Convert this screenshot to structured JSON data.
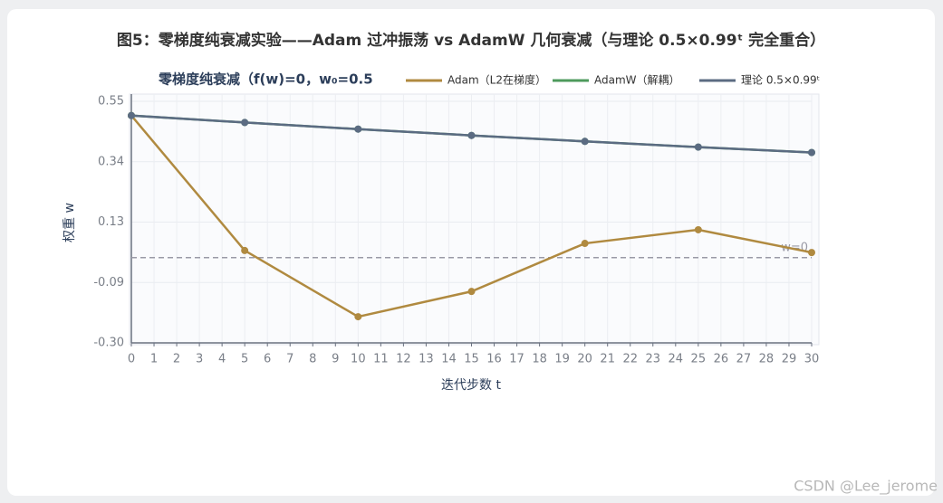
{
  "chart_data": {
    "type": "line",
    "title": "图5：零梯度纯衰减实验——Adam 过冲振荡 vs AdamW 几何衰减（与理论 0.5×0.99ᵗ 完全重合）",
    "subtitle": "零梯度纯衰减（f(w)=0，w₀=0.5",
    "x_label": "迭代步数 t",
    "y_label": "权重 w",
    "x": [
      0,
      5,
      10,
      15,
      20,
      25,
      30
    ],
    "series": [
      {
        "name": "Adam（L2在梯度）",
        "color": "#b08a40",
        "values": [
          0.5,
          0.025,
          -0.208,
          -0.119,
          0.05,
          0.098,
          0.018
        ]
      },
      {
        "name": "AdamW（解耦）",
        "color": "#4e9a5c",
        "values": [
          0.5,
          0.4755,
          0.4522,
          0.43,
          0.409,
          0.3889,
          0.3699
        ]
      },
      {
        "name": "理论 0.5×0.99ᵗ",
        "color": "#5b6b82",
        "values": [
          0.5,
          0.4755,
          0.4522,
          0.43,
          0.409,
          0.3889,
          0.3699
        ]
      }
    ],
    "xlim": [
      0,
      30
    ],
    "xticks": [
      0,
      1,
      2,
      3,
      4,
      5,
      6,
      7,
      8,
      9,
      10,
      11,
      12,
      13,
      14,
      15,
      16,
      17,
      18,
      19,
      20,
      21,
      22,
      23,
      24,
      25,
      26,
      27,
      28,
      29,
      30
    ],
    "ylim": [
      -0.3,
      0.55
    ],
    "yticks": [
      {
        "value": -0.3,
        "label": "-0.30"
      },
      {
        "value": -0.0875,
        "label": "-0.09"
      },
      {
        "value": 0.125,
        "label": "0.13"
      },
      {
        "value": 0.3375,
        "label": "0.34"
      },
      0.55
    ],
    "reference_line": {
      "value": 0,
      "label": "w=0"
    },
    "grid": true,
    "watermark": "CSDN @Lee_jerome"
  }
}
